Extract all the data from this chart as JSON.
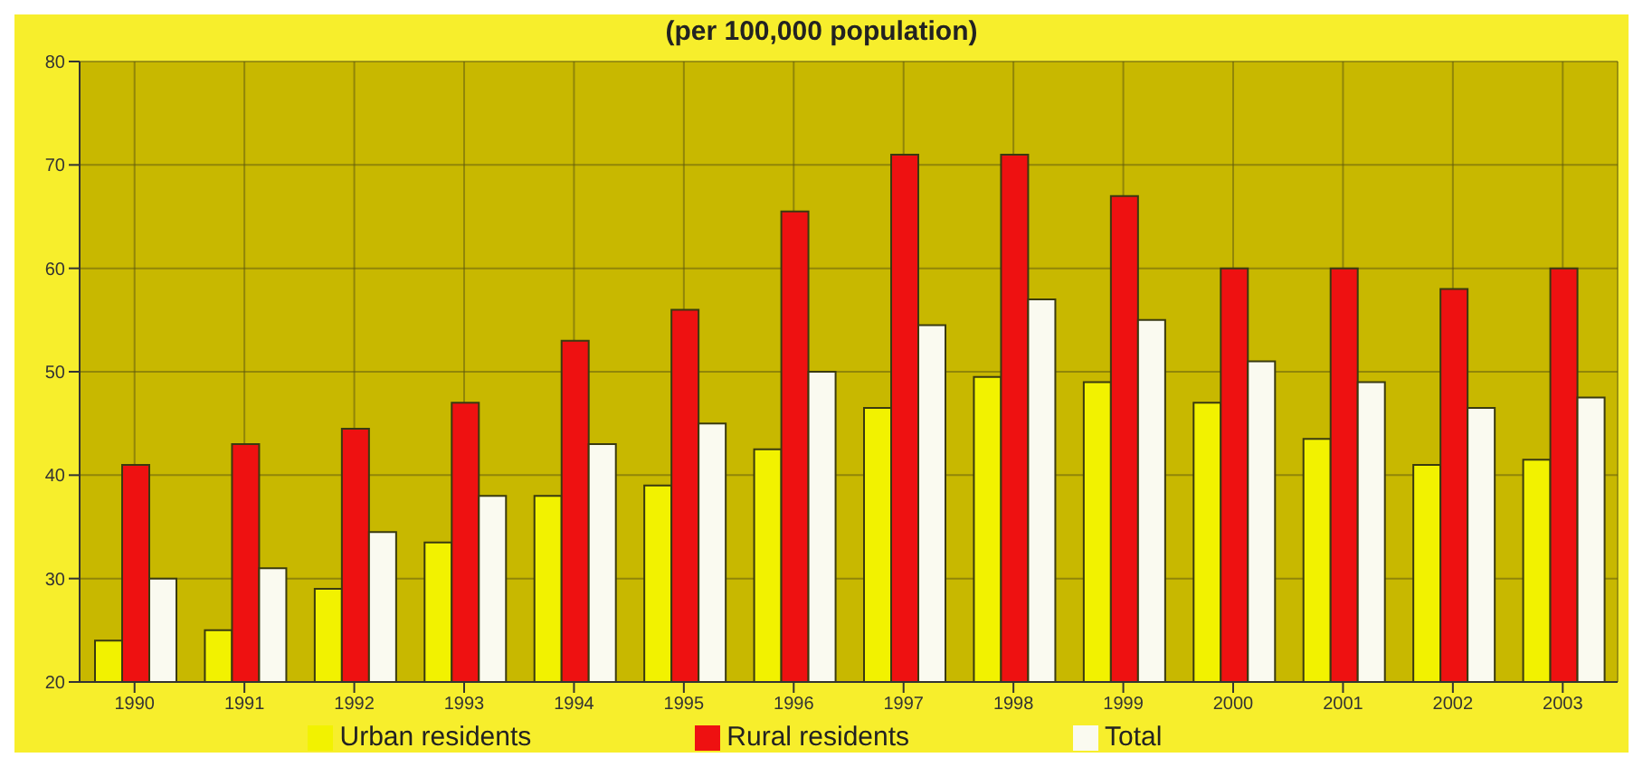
{
  "chart_data": {
    "type": "bar",
    "title": "(per 100,000 population)",
    "categories": [
      "1990",
      "1991",
      "1992",
      "1993",
      "1994",
      "1995",
      "1996",
      "1997",
      "1998",
      "1999",
      "2000",
      "2001",
      "2002",
      "2003"
    ],
    "series": [
      {
        "name": "Urban residents",
        "color": "#f2f200",
        "values": [
          24,
          25,
          29,
          33.5,
          38,
          39,
          42.5,
          46.5,
          49.5,
          49,
          47,
          43.5,
          41,
          41.5
        ]
      },
      {
        "name": "Rural residents",
        "color": "#ee1111",
        "values": [
          41,
          43,
          44.5,
          47,
          53,
          56,
          65.5,
          71,
          71,
          67,
          60,
          60,
          58,
          60
        ]
      },
      {
        "name": "Total",
        "color": "#fafaf0",
        "values": [
          30,
          31,
          34.5,
          38,
          43,
          45,
          50,
          54.5,
          57,
          55,
          51,
          49,
          46.5,
          47.5
        ]
      }
    ],
    "ylim": [
      20,
      80
    ],
    "yticks": [
      20,
      30,
      40,
      50,
      60,
      70,
      80
    ],
    "grid": true,
    "legend": "bottom"
  }
}
